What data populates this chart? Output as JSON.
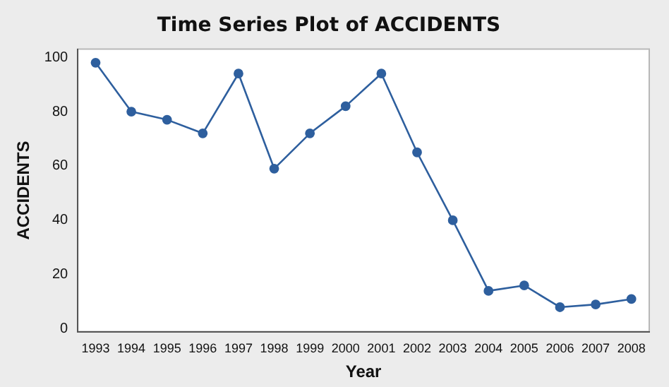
{
  "chart_data": {
    "type": "line",
    "title": "Time Series Plot of ACCIDENTS",
    "xlabel": "Year",
    "ylabel": "ACCIDENTS",
    "categories": [
      "1993",
      "1994",
      "1995",
      "1996",
      "1997",
      "1998",
      "1999",
      "2000",
      "2001",
      "2002",
      "2003",
      "2004",
      "2005",
      "2006",
      "2007",
      "2008"
    ],
    "series": [
      {
        "color": "#2e5f9e",
        "values": [
          98,
          80,
          77,
          72,
          94,
          59,
          72,
          82,
          94,
          65,
          40,
          14,
          16,
          8,
          9,
          11
        ]
      }
    ],
    "ylim": [
      -1,
      103
    ],
    "yticks": [
      0,
      20,
      40,
      60,
      80,
      100
    ],
    "grid": false,
    "legend": false,
    "marker": "circle",
    "line_style": "solid"
  }
}
